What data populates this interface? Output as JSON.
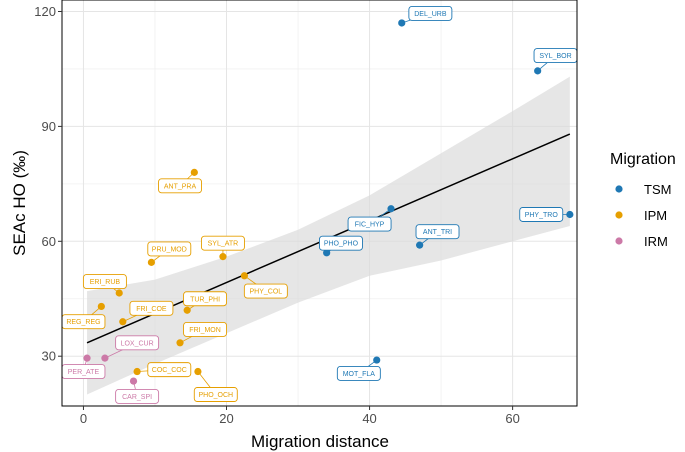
{
  "chart_data": {
    "type": "scatter",
    "title": "",
    "xlabel": "Migration distance",
    "ylabel": "SEAc HO (‰)",
    "xlim": [
      -3,
      69
    ],
    "ylim": [
      17,
      123
    ],
    "x_ticks": [
      0,
      20,
      40,
      60
    ],
    "y_ticks": [
      30,
      60,
      90,
      120
    ],
    "grid": true,
    "legend": {
      "title": "Migration",
      "position": "right",
      "entries": [
        {
          "name": "TSM",
          "color": "#1f78b4"
        },
        {
          "name": "IPM",
          "color": "#e69f00"
        },
        {
          "name": "IRM",
          "color": "#cc79a7"
        }
      ]
    },
    "regression": {
      "x": [
        0.5,
        68
      ],
      "y": [
        33.5,
        88
      ]
    },
    "ci_band": {
      "x": [
        0.5,
        10,
        20,
        30,
        40,
        50,
        60,
        68
      ],
      "upper": [
        47,
        50,
        56,
        63,
        72,
        83,
        94,
        103
      ],
      "lower": [
        20,
        28,
        36,
        44,
        51,
        55,
        60,
        64
      ]
    },
    "points": [
      {
        "label": "DEL_URB",
        "group": "TSM",
        "x": 44.5,
        "y": 117,
        "lx": 48.5,
        "ly": 119.5
      },
      {
        "label": "SYL_BOR",
        "group": "TSM",
        "x": 63.5,
        "y": 104.5,
        "lx": 66,
        "ly": 108.5
      },
      {
        "label": "PHY_TRO",
        "group": "TSM",
        "x": 68,
        "y": 67,
        "lx": 64,
        "ly": 67
      },
      {
        "label": "FIC_HYP",
        "group": "TSM",
        "x": 43,
        "y": 68.5,
        "lx": 40,
        "ly": 64.5
      },
      {
        "label": "ANT_TRI",
        "group": "TSM",
        "x": 47,
        "y": 59,
        "lx": 49.5,
        "ly": 62.5
      },
      {
        "label": "PHO_PHO",
        "group": "TSM",
        "x": 34,
        "y": 57,
        "lx": 36,
        "ly": 59.5
      },
      {
        "label": "MOT_FLA",
        "group": "TSM",
        "x": 41,
        "y": 29,
        "lx": 38.5,
        "ly": 25.5
      },
      {
        "label": "ANT_PRA",
        "group": "IPM",
        "x": 15.5,
        "y": 78,
        "lx": 13.5,
        "ly": 74.5
      },
      {
        "label": "SYL_ATR",
        "group": "IPM",
        "x": 19.5,
        "y": 56,
        "lx": 19.5,
        "ly": 59.5
      },
      {
        "label": "PRU_MOD",
        "group": "IPM",
        "x": 9.5,
        "y": 54.5,
        "lx": 12,
        "ly": 58
      },
      {
        "label": "PHY_COL",
        "group": "IPM",
        "x": 22.5,
        "y": 51,
        "lx": 25.5,
        "ly": 47
      },
      {
        "label": "ERI_RUB",
        "group": "IPM",
        "x": 5,
        "y": 46.5,
        "lx": 3,
        "ly": 49.5
      },
      {
        "label": "TUR_PHI",
        "group": "IPM",
        "x": 14.5,
        "y": 42,
        "lx": 17,
        "ly": 45
      },
      {
        "label": "FRI_COE",
        "group": "IPM",
        "x": 5.5,
        "y": 39,
        "lx": 9.5,
        "ly": 42.5
      },
      {
        "label": "REG_REG",
        "group": "IPM",
        "x": 2.5,
        "y": 43,
        "lx": 0,
        "ly": 39
      },
      {
        "label": "FRI_MON",
        "group": "IPM",
        "x": 13.5,
        "y": 33.5,
        "lx": 17,
        "ly": 37
      },
      {
        "label": "COC_COC",
        "group": "IPM",
        "x": 7.5,
        "y": 26,
        "lx": 12,
        "ly": 26.5
      },
      {
        "label": "PHO_OCH",
        "group": "IPM",
        "x": 16,
        "y": 26,
        "lx": 18.5,
        "ly": 20
      },
      {
        "label": "LOX_CUR",
        "group": "IRM",
        "x": 3,
        "y": 29.5,
        "lx": 7.5,
        "ly": 33.5
      },
      {
        "label": "PER_ATE",
        "group": "IRM",
        "x": 0.5,
        "y": 29.5,
        "lx": 0,
        "ly": 26
      },
      {
        "label": "CAR_SPI",
        "group": "IRM",
        "x": 7,
        "y": 23.5,
        "lx": 7.5,
        "ly": 19.5
      }
    ]
  }
}
